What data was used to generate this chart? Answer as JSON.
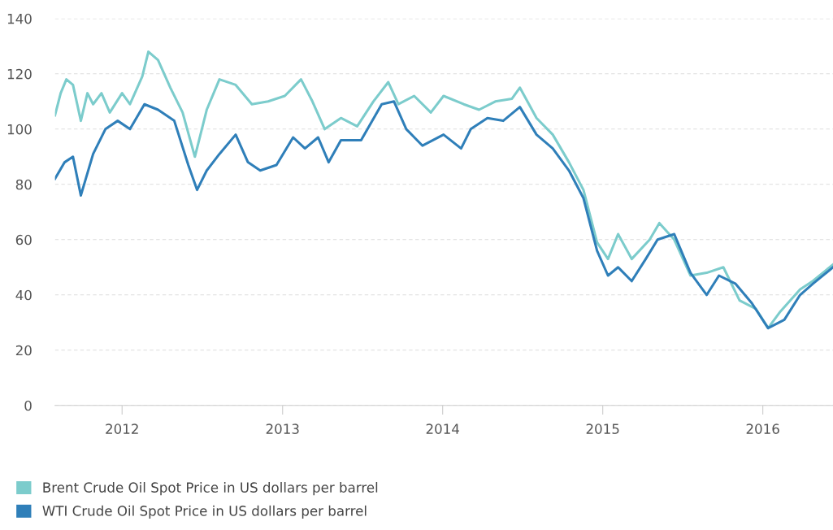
{
  "chart_data": {
    "type": "line",
    "xlim": [
      "2011-08-01",
      "2016-06-09"
    ],
    "xticks": [
      {
        "value": "2012-01-01",
        "label": "2012"
      },
      {
        "value": "2013-01-01",
        "label": "2013"
      },
      {
        "value": "2014-01-01",
        "label": "2014"
      },
      {
        "value": "2015-01-01",
        "label": "2015"
      },
      {
        "value": "2016-01-01",
        "label": "2016"
      }
    ],
    "ylim": [
      0,
      140
    ],
    "yticks": [
      0,
      20,
      40,
      60,
      80,
      100,
      120,
      140
    ],
    "grid": "y",
    "legend": "bottom",
    "marker": "none",
    "line_style": "solid",
    "series": [
      {
        "name": "Brent Crude Oil Spot Price in US dollars per barrel",
        "color": "#7ccccc",
        "x": [
          "2011-08-01",
          "2011-08-14",
          "2011-08-27",
          "2011-09-11",
          "2011-09-29",
          "2011-10-14",
          "2011-10-27",
          "2011-11-15",
          "2011-12-04",
          "2012-01-01",
          "2012-01-19",
          "2012-02-16",
          "2012-03-01",
          "2012-03-23",
          "2012-04-20",
          "2012-05-18",
          "2012-06-15",
          "2012-07-12",
          "2012-08-10",
          "2012-09-16",
          "2012-10-23",
          "2012-11-29",
          "2013-01-06",
          "2013-02-12",
          "2013-03-10",
          "2013-04-07",
          "2013-05-14",
          "2013-06-20",
          "2013-07-27",
          "2013-08-30",
          "2013-09-22",
          "2013-10-28",
          "2013-12-05",
          "2014-01-03",
          "2014-02-18",
          "2014-03-25",
          "2014-05-01",
          "2014-06-08",
          "2014-06-26",
          "2014-08-03",
          "2014-09-09",
          "2014-10-16",
          "2014-11-18",
          "2014-12-19",
          "2015-01-13",
          "2015-02-05",
          "2015-03-08",
          "2015-04-18",
          "2015-05-10",
          "2015-06-13",
          "2015-07-20",
          "2015-08-26",
          "2015-10-03",
          "2015-11-09",
          "2015-12-16",
          "2016-01-13",
          "2016-02-10",
          "2016-03-26",
          "2016-04-24",
          "2016-06-09"
        ],
        "values": [
          105,
          113,
          118,
          116,
          103,
          113,
          109,
          113,
          106,
          113,
          109,
          119,
          128,
          125,
          115,
          106,
          90,
          107,
          118,
          116,
          109,
          110,
          112,
          118,
          110,
          100,
          104,
          101,
          110,
          117,
          109,
          112,
          106,
          112,
          109,
          107,
          110,
          111,
          115,
          104,
          98,
          88,
          78,
          59,
          53,
          62,
          53,
          60,
          66,
          60,
          47,
          48,
          50,
          38,
          35,
          28,
          34,
          42,
          45,
          51
        ]
      },
      {
        "name": "WTI Crude Oil Spot Price in US dollars per barrel",
        "color": "#2f7fb9",
        "x": [
          "2011-08-01",
          "2011-08-23",
          "2011-09-11",
          "2011-09-29",
          "2011-10-27",
          "2011-11-24",
          "2011-12-22",
          "2012-01-19",
          "2012-02-21",
          "2012-03-23",
          "2012-04-29",
          "2012-05-31",
          "2012-06-20",
          "2012-07-12",
          "2012-08-10",
          "2012-09-16",
          "2012-10-14",
          "2012-11-11",
          "2012-12-18",
          "2013-01-25",
          "2013-02-21",
          "2013-03-23",
          "2013-04-16",
          "2013-05-14",
          "2013-06-29",
          "2013-08-15",
          "2013-09-12",
          "2013-10-10",
          "2013-11-16",
          "2014-01-03",
          "2014-02-12",
          "2014-03-06",
          "2014-04-13",
          "2014-05-19",
          "2014-06-26",
          "2014-08-03",
          "2014-09-09",
          "2014-10-16",
          "2014-11-18",
          "2014-12-19",
          "2015-01-13",
          "2015-02-05",
          "2015-03-08",
          "2015-04-09",
          "2015-05-06",
          "2015-06-13",
          "2015-07-20",
          "2015-08-26",
          "2015-09-23",
          "2015-10-31",
          "2015-12-07",
          "2016-01-13",
          "2016-02-19",
          "2016-03-26",
          "2016-04-24",
          "2016-06-09"
        ],
        "values": [
          82,
          88,
          90,
          76,
          91,
          100,
          103,
          100,
          109,
          107,
          103,
          87,
          78,
          85,
          91,
          98,
          88,
          85,
          87,
          97,
          93,
          97,
          88,
          96,
          96,
          109,
          110,
          100,
          94,
          98,
          93,
          100,
          104,
          103,
          108,
          98,
          93,
          85,
          75,
          56,
          47,
          50,
          45,
          53,
          60,
          62,
          48,
          40,
          47,
          44,
          37,
          28,
          31,
          40,
          44,
          50
        ]
      }
    ]
  }
}
